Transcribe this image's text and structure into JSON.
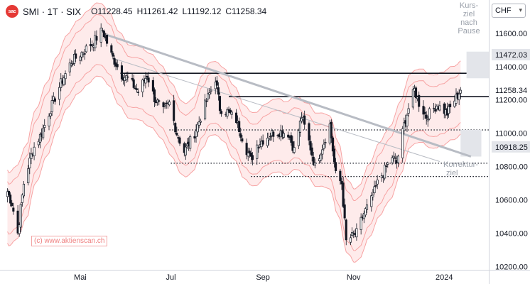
{
  "header": {
    "logo": "sac",
    "symbol": "SMI · 1T · SIX",
    "open": "O11228.45",
    "high": "H11261.42",
    "low": "L11192.12",
    "close": "C11258.34"
  },
  "currency": "CHF",
  "watermark": "(c) www.aktienscan.ch",
  "annotations": {
    "top_right": [
      "Kurs-",
      "ziel",
      "nach",
      "Pause"
    ],
    "bottom_right": [
      "Korrektur-",
      "ziel"
    ]
  },
  "colors": {
    "candle": "#131722",
    "band_fill": "#fde4e4",
    "band_line": "#f7a3a3",
    "trendline": "#b8bcc4",
    "target_box": "#e3e5ea"
  },
  "chart_data": {
    "type": "candlestick",
    "title": "SMI · 1T · SIX",
    "y_axis": {
      "ticks": [
        10200,
        10400,
        10600,
        10800,
        11000,
        11200,
        11400,
        11600
      ],
      "tick_labels": [
        "10200.00",
        "10400.00",
        "10600.00",
        "10800.00",
        "11000.00",
        "11200.00",
        "11400.00",
        "11600.00"
      ],
      "range": [
        10180,
        11800
      ]
    },
    "x_axis": {
      "tick_labels": [
        "Mai",
        "Jul",
        "Sep",
        "Nov",
        "2024"
      ],
      "tick_dates": [
        "2023-05-01",
        "2023-07-01",
        "2023-09-01",
        "2023-11-01",
        "2024-01-01"
      ],
      "range": [
        "2023-03-08",
        "2024-01-31"
      ]
    },
    "price_labels": [
      {
        "value": 11472.03,
        "label": "11472.03",
        "style": "shaded"
      },
      {
        "value": 11258.34,
        "label": "11258.34",
        "style": "plain"
      },
      {
        "value": 10918.25,
        "label": "10918.25",
        "style": "shaded"
      }
    ],
    "close_anchors": [
      [
        "2023-03-13",
        10650
      ],
      [
        "2023-03-16",
        10580
      ],
      [
        "2023-03-20",
        10400
      ],
      [
        "2023-03-24",
        10700
      ],
      [
        "2023-03-30",
        10900
      ],
      [
        "2023-04-05",
        11000
      ],
      [
        "2023-04-12",
        11170
      ],
      [
        "2023-04-18",
        11300
      ],
      [
        "2023-04-25",
        11430
      ],
      [
        "2023-05-03",
        11490
      ],
      [
        "2023-05-10",
        11550
      ],
      [
        "2023-05-16",
        11620
      ],
      [
        "2023-05-22",
        11470
      ],
      [
        "2023-05-29",
        11350
      ],
      [
        "2023-06-02",
        11330
      ],
      [
        "2023-06-09",
        11250
      ],
      [
        "2023-06-15",
        11350
      ],
      [
        "2023-06-20",
        11210
      ],
      [
        "2023-06-26",
        11130
      ],
      [
        "2023-06-30",
        11180
      ],
      [
        "2023-07-05",
        11000
      ],
      [
        "2023-07-10",
        10890
      ],
      [
        "2023-07-17",
        11000
      ],
      [
        "2023-07-24",
        11170
      ],
      [
        "2023-07-28",
        11260
      ],
      [
        "2023-07-31",
        11330
      ],
      [
        "2023-08-03",
        11150
      ],
      [
        "2023-08-08",
        11130
      ],
      [
        "2023-08-14",
        11080
      ],
      [
        "2023-08-21",
        10900
      ],
      [
        "2023-08-24",
        10840
      ],
      [
        "2023-08-28",
        10930
      ],
      [
        "2023-09-01",
        10960
      ],
      [
        "2023-09-07",
        11000
      ],
      [
        "2023-09-12",
        11010
      ],
      [
        "2023-09-18",
        11000
      ],
      [
        "2023-09-22",
        10900
      ],
      [
        "2023-09-27",
        11100
      ],
      [
        "2023-10-02",
        10950
      ],
      [
        "2023-10-06",
        10800
      ],
      [
        "2023-10-11",
        10920
      ],
      [
        "2023-10-16",
        11050
      ],
      [
        "2023-10-20",
        10750
      ],
      [
        "2023-10-24",
        10700
      ],
      [
        "2023-10-27",
        10350
      ],
      [
        "2023-10-31",
        10380
      ],
      [
        "2023-11-03",
        10400
      ],
      [
        "2023-11-08",
        10520
      ],
      [
        "2023-11-13",
        10600
      ],
      [
        "2023-11-17",
        10700
      ],
      [
        "2023-11-22",
        10780
      ],
      [
        "2023-11-27",
        10860
      ],
      [
        "2023-11-30",
        10820
      ],
      [
        "2023-12-05",
        11050
      ],
      [
        "2023-12-08",
        11150
      ],
      [
        "2023-12-12",
        11260
      ],
      [
        "2023-12-15",
        11180
      ],
      [
        "2023-12-20",
        11100
      ],
      [
        "2023-12-27",
        11170
      ],
      [
        "2024-01-03",
        11120
      ],
      [
        "2024-01-08",
        11200
      ],
      [
        "2024-01-12",
        11258.34
      ]
    ],
    "horizontal_levels": [
      {
        "value": 11360,
        "style": "solid",
        "from": "2023-05-28",
        "to": "2024-01-31"
      },
      {
        "value": 11220,
        "style": "solid",
        "from": "2023-08-09",
        "to": "2024-01-31"
      },
      {
        "value": 11020,
        "style": "dotted",
        "from": "2023-06-30",
        "to": "2024-01-31"
      },
      {
        "value": 10820,
        "style": "dotted",
        "from": "2023-07-01",
        "to": "2024-01-31"
      },
      {
        "value": 10740,
        "style": "dotted",
        "from": "2023-08-24",
        "to": "2024-01-31"
      }
    ],
    "trendlines": [
      {
        "from": [
          "2023-05-19",
          11590
        ],
        "to": [
          "2024-01-19",
          10860
        ],
        "weight": "thick"
      },
      {
        "from": [
          "2023-05-23",
          11450
        ],
        "to": [
          "2023-12-29",
          10830
        ],
        "weight": "thin"
      }
    ],
    "target_zones": [
      {
        "from": "2024-01-16",
        "to": "2024-01-31",
        "low": 11330,
        "high": 11490
      },
      {
        "from": "2024-01-12",
        "to": "2024-01-26",
        "low": 10860,
        "high": 11020
      }
    ],
    "band_offsets": [
      -220,
      -150,
      150,
      220
    ]
  }
}
